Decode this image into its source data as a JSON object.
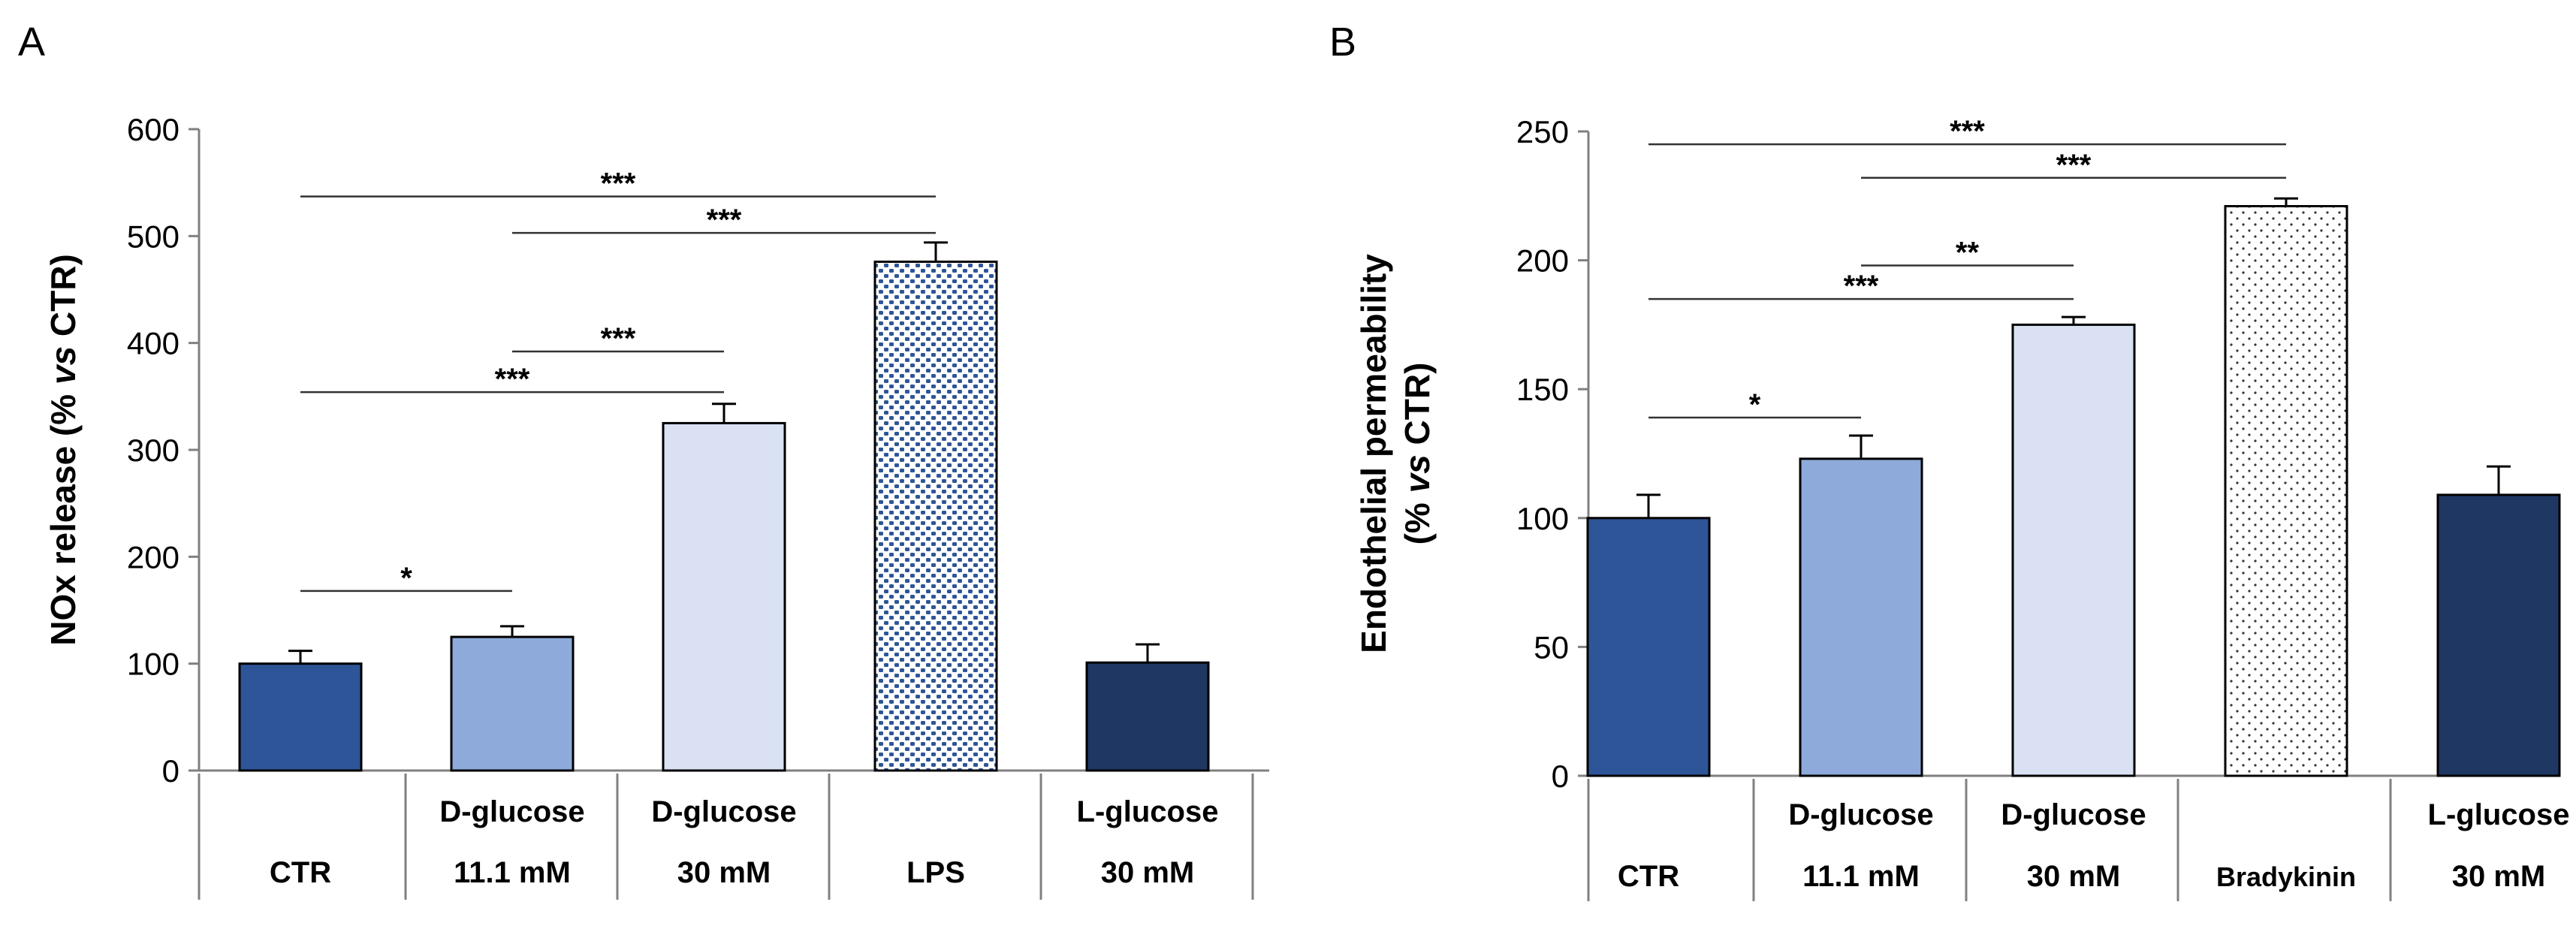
{
  "figure": {
    "panels": [
      "A",
      "B"
    ]
  },
  "colors": {
    "ctr": "#2e5597",
    "dglucose_low": "#8eaadb",
    "dglucose_high": "#d9e1f3",
    "lps_dots": "#2e5597",
    "bradykinin_dots": "#333333",
    "lglucose": "#1f3763",
    "axis": "#808080",
    "text": "#000000"
  },
  "chart_data": [
    {
      "panel": "A",
      "type": "bar",
      "ylabel_prefix": "NOx release (% ",
      "ylabel_italic": "vs",
      "ylabel_suffix": " CTR)",
      "ylim": [
        0,
        600
      ],
      "yticks": [
        0,
        100,
        200,
        300,
        400,
        500,
        600
      ],
      "categories": [
        {
          "line1": "",
          "line2": "CTR"
        },
        {
          "line1": "D-glucose",
          "line2": "11.1 mM"
        },
        {
          "line1": "D-glucose",
          "line2": "30 mM"
        },
        {
          "line1": "",
          "line2": "LPS"
        },
        {
          "line1": "L-glucose",
          "line2": "30 mM"
        }
      ],
      "values": [
        100,
        125,
        325,
        476,
        101
      ],
      "errors": [
        12,
        10,
        18,
        18,
        17
      ],
      "fills": [
        "ctr",
        "dglucose_low",
        "dglucose_high",
        "pattern-lps",
        "lglucose"
      ],
      "significance": [
        {
          "from": 0,
          "to": 1,
          "label": "*",
          "y": 168
        },
        {
          "from": 0,
          "to": 2,
          "label": "***",
          "y": 354
        },
        {
          "from": 1,
          "to": 2,
          "label": "***",
          "y": 392
        },
        {
          "from": 1,
          "to": 3,
          "label": "***",
          "y": 503
        },
        {
          "from": 0,
          "to": 3,
          "label": "***",
          "y": 537
        }
      ]
    },
    {
      "panel": "B",
      "type": "bar",
      "ylabel_line1": "Endothelial permeability",
      "ylabel_prefix": "(% ",
      "ylabel_italic": "vs",
      "ylabel_suffix": " CTR)",
      "ylim": [
        0,
        250
      ],
      "yticks": [
        0,
        50,
        100,
        150,
        200,
        250
      ],
      "categories": [
        {
          "line1": "",
          "line2": "CTR"
        },
        {
          "line1": "D-glucose",
          "line2": "11.1 mM"
        },
        {
          "line1": "D-glucose",
          "line2": "30 mM"
        },
        {
          "line1": "",
          "line2": "Bradykinin"
        },
        {
          "line1": "L-glucose",
          "line2": "30 mM"
        }
      ],
      "values": [
        100,
        123,
        175,
        221,
        109
      ],
      "errors": [
        9,
        9,
        3,
        3,
        11
      ],
      "fills": [
        "ctr",
        "dglucose_low",
        "dglucose_high",
        "pattern-brady",
        "lglucose"
      ],
      "significance": [
        {
          "from": 0,
          "to": 1,
          "label": "*",
          "y": 139
        },
        {
          "from": 0,
          "to": 2,
          "label": "***",
          "y": 185
        },
        {
          "from": 1,
          "to": 2,
          "label": "**",
          "y": 198
        },
        {
          "from": 1,
          "to": 3,
          "label": "***",
          "y": 232
        },
        {
          "from": 0,
          "to": 3,
          "label": "***",
          "y": 245
        }
      ]
    }
  ]
}
